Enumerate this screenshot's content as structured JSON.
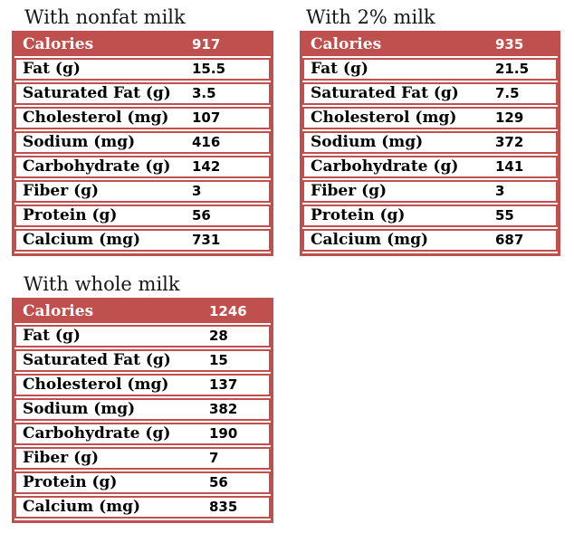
{
  "page": {
    "background": "#ffffff",
    "accent_color": "#c0504d",
    "header_text_color": "#ffffff",
    "body_text_color": "#000000"
  },
  "tables": [
    {
      "title": "With nonfat milk",
      "header": {
        "label": "Calories",
        "value": "917"
      },
      "rows": [
        {
          "label": "Fat (g)",
          "value": "15.5"
        },
        {
          "label": "Saturated Fat (g)",
          "value": "3.5"
        },
        {
          "label": "Cholesterol (mg)",
          "value": "107"
        },
        {
          "label": "Sodium (mg)",
          "value": "416"
        },
        {
          "label": "Carbohydrate (g)",
          "value": "142"
        },
        {
          "label": "Fiber (g)",
          "value": "3"
        },
        {
          "label": "Protein (g)",
          "value": "56"
        },
        {
          "label": "Calcium (mg)",
          "value": "731"
        }
      ]
    },
    {
      "title": "With 2% milk",
      "header": {
        "label": "Calories",
        "value": "935"
      },
      "rows": [
        {
          "label": "Fat (g)",
          "value": "21.5"
        },
        {
          "label": "Saturated Fat (g)",
          "value": "7.5"
        },
        {
          "label": "Cholesterol (mg)",
          "value": "129"
        },
        {
          "label": "Sodium (mg)",
          "value": "372"
        },
        {
          "label": "Carbohydrate (g)",
          "value": "141"
        },
        {
          "label": "Fiber (g)",
          "value": "3"
        },
        {
          "label": "Protein (g)",
          "value": "55"
        },
        {
          "label": "Calcium (mg)",
          "value": "687"
        }
      ]
    },
    {
      "title": "With whole milk",
      "header": {
        "label": "Calories",
        "value": "1246"
      },
      "rows": [
        {
          "label": "Fat (g)",
          "value": "28"
        },
        {
          "label": "Saturated Fat (g)",
          "value": "15"
        },
        {
          "label": "Cholesterol (mg)",
          "value": "137"
        },
        {
          "label": "Sodium (mg)",
          "value": "382"
        },
        {
          "label": "Carbohydrate (g)",
          "value": "190"
        },
        {
          "label": "Fiber (g)",
          "value": "7"
        },
        {
          "label": "Protein (g)",
          "value": "56"
        },
        {
          "label": "Calcium (mg)",
          "value": "835"
        }
      ]
    }
  ],
  "chart_data": [
    {
      "type": "table",
      "title": "With nonfat milk",
      "rows": [
        [
          "Calories",
          917
        ],
        [
          "Fat (g)",
          15.5
        ],
        [
          "Saturated Fat (g)",
          3.5
        ],
        [
          "Cholesterol (mg)",
          107
        ],
        [
          "Sodium (mg)",
          416
        ],
        [
          "Carbohydrate (g)",
          142
        ],
        [
          "Fiber (g)",
          3
        ],
        [
          "Protein (g)",
          56
        ],
        [
          "Calcium (mg)",
          731
        ]
      ]
    },
    {
      "type": "table",
      "title": "With 2% milk",
      "rows": [
        [
          "Calories",
          935
        ],
        [
          "Fat (g)",
          21.5
        ],
        [
          "Saturated Fat (g)",
          7.5
        ],
        [
          "Cholesterol (mg)",
          129
        ],
        [
          "Sodium (mg)",
          372
        ],
        [
          "Carbohydrate (g)",
          141
        ],
        [
          "Fiber (g)",
          3
        ],
        [
          "Protein (g)",
          55
        ],
        [
          "Calcium (mg)",
          687
        ]
      ]
    },
    {
      "type": "table",
      "title": "With whole milk",
      "rows": [
        [
          "Calories",
          1246
        ],
        [
          "Fat (g)",
          28
        ],
        [
          "Saturated Fat (g)",
          15
        ],
        [
          "Cholesterol (mg)",
          137
        ],
        [
          "Sodium (mg)",
          382
        ],
        [
          "Carbohydrate (g)",
          190
        ],
        [
          "Fiber (g)",
          7
        ],
        [
          "Protein (g)",
          56
        ],
        [
          "Calcium (mg)",
          835
        ]
      ]
    }
  ]
}
